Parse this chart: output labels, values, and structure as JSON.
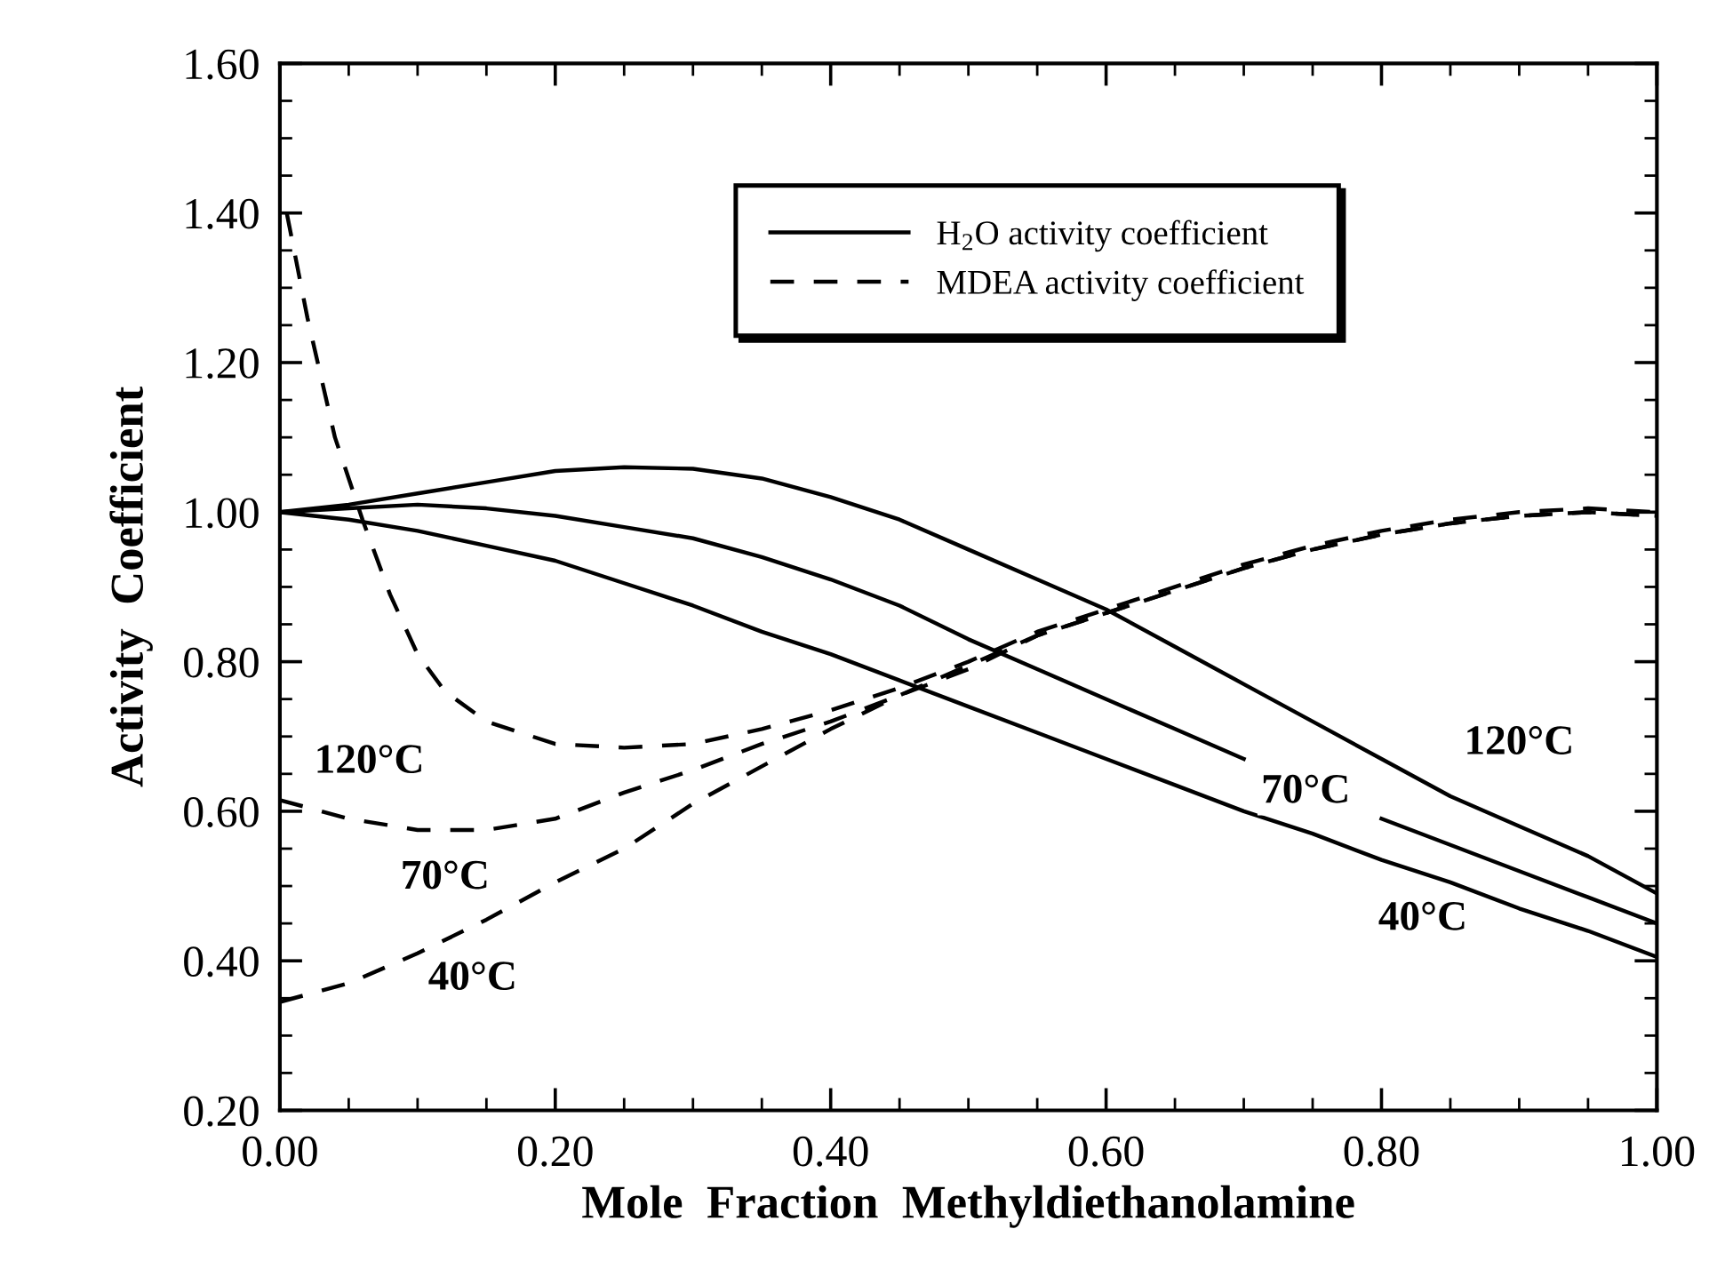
{
  "chart_data": {
    "type": "line",
    "xlabel": "Mole  Fraction  Methyldiethanolamine",
    "ylabel": "Activity  Coefficient",
    "xlim": [
      0,
      1
    ],
    "ylim": [
      0.2,
      1.6
    ],
    "xticks": [
      {
        "value": 0,
        "label": "0.00"
      },
      {
        "value": 0.2,
        "label": "0.20"
      },
      {
        "value": 0.4,
        "label": "0.40"
      },
      {
        "value": 0.6,
        "label": "0.60"
      },
      {
        "value": 0.8,
        "label": "0.80"
      },
      {
        "value": 1,
        "label": "1.00"
      }
    ],
    "yticks": [
      {
        "value": 0.2,
        "label": "0.20"
      },
      {
        "value": 0.4,
        "label": "0.40"
      },
      {
        "value": 0.6,
        "label": "0.60"
      },
      {
        "value": 0.8,
        "label": "0.80"
      },
      {
        "value": 1,
        "label": "1.00"
      },
      {
        "value": 1.2,
        "label": "1.20"
      },
      {
        "value": 1.4,
        "label": "1.40"
      },
      {
        "value": 1.6,
        "label": "1.60"
      }
    ],
    "grid": false,
    "legend": "top",
    "marker": "none",
    "series": [
      {
        "name": "H$_{2}$O activity coefficient",
        "color": "#000000",
        "line_style": "solid",
        "x": [
          0,
          0.05,
          0.1,
          0.15,
          0.2,
          0.25,
          0.3,
          0.35,
          0.4,
          0.45,
          0.5,
          0.55,
          0.6,
          0.65,
          0.7,
          0.75,
          0.8,
          0.85,
          0.9,
          0.95,
          1.0
        ],
        "values": [
          1.0,
          0.99,
          0.975,
          0.955,
          0.935,
          0.905,
          0.875,
          0.84,
          0.81,
          0.775,
          0.74,
          0.705,
          0.67,
          0.635,
          0.6,
          0.57,
          0.535,
          0.505,
          0.47,
          0.44,
          0.405
        ]
      },
      {
        "color": "#000000",
        "line_style": "solid",
        "x": [
          0,
          0.05,
          0.1,
          0.15,
          0.2,
          0.25,
          0.3,
          0.35,
          0.4,
          0.45,
          0.5,
          0.55,
          0.6,
          0.65,
          0.7,
          0.75,
          0.8,
          0.85,
          0.9,
          0.95,
          1.0
        ],
        "values": [
          1.0,
          1.005,
          1.01,
          1.005,
          0.995,
          0.98,
          0.965,
          0.94,
          0.91,
          0.875,
          0.83,
          0.79,
          0.75,
          0.71,
          0.67,
          null,
          0.59,
          0.555,
          0.52,
          0.485,
          0.45
        ]
      },
      {
        "color": "#000000",
        "line_style": "solid",
        "x": [
          0,
          0.05,
          0.1,
          0.15,
          0.2,
          0.25,
          0.3,
          0.35,
          0.4,
          0.45,
          0.5,
          0.55,
          0.6,
          0.65,
          0.7,
          0.75,
          0.8,
          0.85,
          0.9,
          0.95,
          1.0
        ],
        "values": [
          1.0,
          1.01,
          1.025,
          1.04,
          1.055,
          1.06,
          1.058,
          1.045,
          1.02,
          0.99,
          0.95,
          0.91,
          0.87,
          0.82,
          0.77,
          0.72,
          0.67,
          0.62,
          0.58,
          0.54,
          0.49
        ]
      },
      {
        "name": "MDEA activity coefficient",
        "color": "#000000",
        "line_style": "dashed",
        "x": [
          0,
          0.05,
          0.1,
          0.15,
          0.2,
          0.25,
          0.3,
          0.35,
          0.4,
          0.45,
          0.5,
          0.55,
          0.6,
          0.65,
          0.7,
          0.75,
          0.8,
          0.85,
          0.9,
          0.95,
          1.0
        ],
        "values": [
          0.345,
          0.37,
          0.41,
          0.455,
          0.505,
          0.55,
          0.61,
          0.66,
          0.71,
          0.755,
          0.795,
          0.835,
          0.865,
          0.895,
          0.925,
          0.95,
          0.97,
          0.985,
          0.995,
          1.0,
          0.995
        ]
      },
      {
        "color": "#000000",
        "line_style": "dashed",
        "x": [
          0,
          0.05,
          0.1,
          0.15,
          0.2,
          0.25,
          0.3,
          0.35,
          0.4,
          0.45,
          0.5,
          0.55,
          0.6,
          0.65,
          0.7,
          0.75,
          0.8,
          0.85,
          0.9,
          0.95,
          1.0
        ],
        "values": [
          0.615,
          0.59,
          0.575,
          0.575,
          0.59,
          0.625,
          0.655,
          0.69,
          0.72,
          0.755,
          0.79,
          0.835,
          0.865,
          0.895,
          0.925,
          0.95,
          0.97,
          0.985,
          0.995,
          1.0,
          0.995
        ]
      },
      {
        "color": "#000000",
        "line_style": "dashed",
        "x": [
          0.005,
          0.02,
          0.04,
          0.06,
          0.08,
          0.1,
          0.12,
          0.15,
          0.2,
          0.25,
          0.3,
          0.35,
          0.4,
          0.45,
          0.5,
          0.55,
          0.6,
          0.65,
          0.7,
          0.75,
          0.8,
          0.85,
          0.9,
          0.95,
          1.0
        ],
        "values": [
          1.4,
          1.26,
          1.1,
          0.99,
          0.89,
          0.81,
          0.76,
          0.72,
          0.69,
          0.685,
          0.69,
          0.71,
          0.735,
          0.765,
          0.8,
          0.84,
          0.87,
          0.9,
          0.93,
          0.955,
          0.975,
          0.99,
          1.0,
          1.005,
          1.0
        ]
      }
    ],
    "annotations": [
      "120°C",
      "70°C",
      "40°C",
      "120°C",
      "70°C",
      "40°C"
    ]
  }
}
